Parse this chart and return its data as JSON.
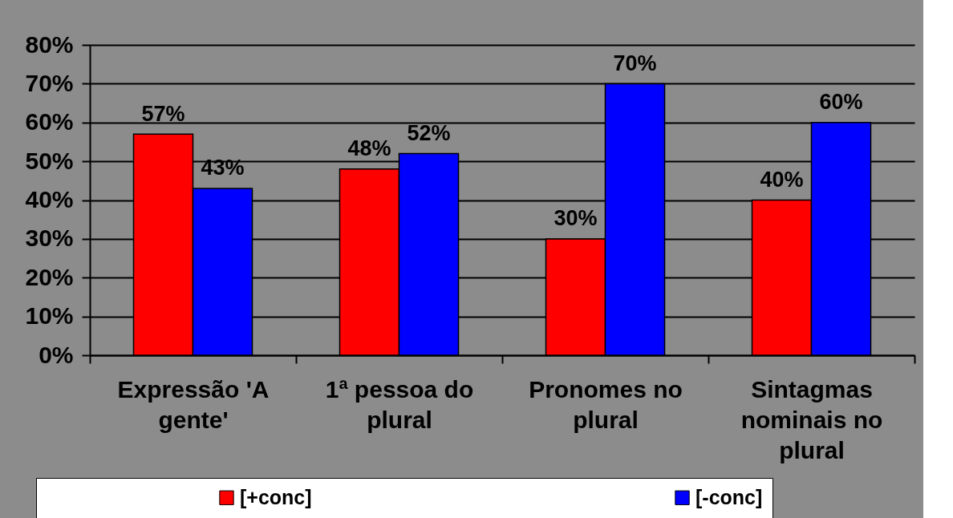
{
  "chart_data": {
    "type": "bar",
    "categories": [
      "Expressão 'A gente'",
      "1ª pessoa do plural",
      "Pronomes no plural",
      "Sintagmas nominais no plural"
    ],
    "series": [
      {
        "name": "[+conc]",
        "color": "#ff0000",
        "values": [
          57,
          48,
          30,
          40
        ],
        "value_labels": [
          "57%",
          "48%",
          "30%",
          "40%"
        ]
      },
      {
        "name": "[-conc]",
        "color": "#0000ff",
        "values": [
          43,
          52,
          70,
          60
        ],
        "value_labels": [
          "43%",
          "52%",
          "70%",
          "60%"
        ]
      }
    ],
    "ylim": [
      0,
      80
    ],
    "yticks": [
      {
        "value": 0,
        "label": "0%"
      },
      {
        "value": 10,
        "label": "10%"
      },
      {
        "value": 20,
        "label": "20%"
      },
      {
        "value": 30,
        "label": "30%"
      },
      {
        "value": 40,
        "label": "40%"
      },
      {
        "value": 50,
        "label": "50%"
      },
      {
        "value": 60,
        "label": "60%"
      },
      {
        "value": 70,
        "label": "70%"
      },
      {
        "value": 80,
        "label": "80%"
      }
    ],
    "grid": "y",
    "legend": "bottom"
  }
}
